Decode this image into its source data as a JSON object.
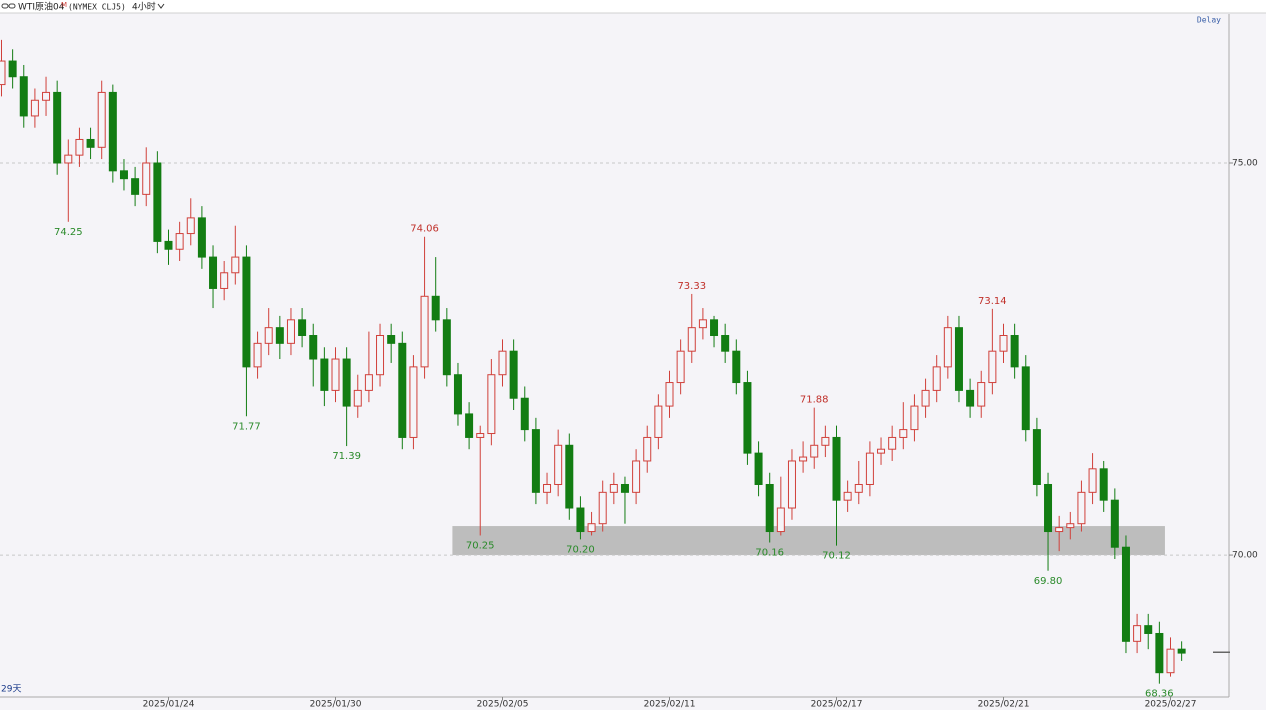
{
  "chart_data": {
    "type": "candlestick",
    "title": "WTI原油04",
    "title_badge": "M",
    "subtitle": "(NYMEX CLJ5)",
    "interval": "4小时",
    "status": "Delay",
    "period_label": "29天",
    "up_color": "#d0403a",
    "down_color": "#137d13",
    "ylim": [
      68.19,
      76.9
    ],
    "yticks": [
      {
        "value": 70,
        "label": "70.00"
      },
      {
        "value": 75,
        "label": "75.00"
      }
    ],
    "grid": true,
    "last_price": 68.76,
    "zone": {
      "low": 70.0,
      "high": 70.37,
      "candles": [
        41,
        104
      ]
    },
    "x": [
      null,
      null,
      null,
      null,
      null,
      null,
      null,
      null,
      null,
      null,
      null,
      null,
      null,
      null,
      null,
      "2025/01/24",
      null,
      null,
      null,
      null,
      null,
      null,
      null,
      null,
      null,
      null,
      null,
      null,
      null,
      null,
      "2025/01/30",
      null,
      null,
      null,
      null,
      null,
      null,
      null,
      null,
      null,
      null,
      null,
      null,
      null,
      null,
      "2025/02/05",
      null,
      null,
      null,
      null,
      null,
      null,
      null,
      null,
      null,
      null,
      null,
      null,
      null,
      null,
      "2025/02/11",
      null,
      null,
      null,
      null,
      null,
      null,
      null,
      null,
      null,
      null,
      null,
      null,
      null,
      null,
      "2025/02/17",
      null,
      null,
      null,
      null,
      null,
      null,
      null,
      null,
      null,
      null,
      null,
      null,
      null,
      null,
      "2025/02/21",
      null,
      null,
      null,
      null,
      null,
      null,
      null,
      null,
      null,
      null,
      null,
      null,
      null,
      null,
      "2025/02/27",
      null
    ],
    "candles": [
      [
        76.0,
        76.57,
        75.85,
        76.3
      ],
      [
        76.3,
        76.45,
        75.95,
        76.1
      ],
      [
        76.1,
        76.25,
        75.45,
        75.6
      ],
      [
        75.6,
        75.95,
        75.45,
        75.8
      ],
      [
        75.8,
        76.1,
        75.6,
        75.9
      ],
      [
        75.9,
        76.05,
        74.85,
        75.0
      ],
      [
        75.0,
        75.3,
        74.25,
        75.1
      ],
      [
        75.1,
        75.45,
        74.95,
        75.3
      ],
      [
        75.3,
        75.45,
        75.05,
        75.2
      ],
      [
        75.2,
        76.05,
        75.05,
        75.9
      ],
      [
        75.9,
        76.0,
        74.75,
        74.9
      ],
      [
        74.9,
        75.05,
        74.65,
        74.8
      ],
      [
        74.8,
        74.95,
        74.45,
        74.6
      ],
      [
        74.6,
        75.2,
        74.45,
        75.0
      ],
      [
        75.0,
        75.15,
        73.85,
        74.0
      ],
      [
        74.0,
        74.15,
        73.7,
        73.9
      ],
      [
        73.9,
        74.25,
        73.75,
        74.1
      ],
      [
        74.1,
        74.55,
        73.95,
        74.3
      ],
      [
        74.3,
        74.45,
        73.65,
        73.8
      ],
      [
        73.8,
        73.95,
        73.15,
        73.4
      ],
      [
        73.4,
        73.75,
        73.25,
        73.6
      ],
      [
        73.6,
        74.2,
        73.45,
        73.8
      ],
      [
        73.8,
        73.95,
        71.77,
        72.4
      ],
      [
        72.4,
        72.85,
        72.25,
        72.7
      ],
      [
        72.7,
        73.15,
        72.55,
        72.9
      ],
      [
        72.9,
        73.05,
        72.5,
        72.7
      ],
      [
        72.7,
        73.15,
        72.55,
        73.0
      ],
      [
        73.0,
        73.15,
        72.65,
        72.8
      ],
      [
        72.8,
        72.95,
        72.15,
        72.5
      ],
      [
        72.5,
        72.65,
        71.9,
        72.1
      ],
      [
        72.1,
        72.65,
        71.95,
        72.5
      ],
      [
        72.5,
        72.65,
        71.39,
        71.9
      ],
      [
        71.9,
        72.3,
        71.75,
        72.1
      ],
      [
        72.1,
        72.85,
        71.95,
        72.3
      ],
      [
        72.3,
        72.95,
        72.15,
        72.8
      ],
      [
        72.8,
        72.95,
        72.45,
        72.7
      ],
      [
        72.7,
        72.85,
        71.35,
        71.5
      ],
      [
        71.5,
        72.55,
        71.35,
        72.4
      ],
      [
        72.4,
        74.06,
        72.25,
        73.3
      ],
      [
        73.3,
        73.8,
        72.85,
        73.0
      ],
      [
        73.0,
        73.15,
        72.15,
        72.3
      ],
      [
        72.3,
        72.45,
        71.65,
        71.8
      ],
      [
        71.8,
        71.95,
        71.35,
        71.5
      ],
      [
        71.5,
        71.65,
        70.25,
        71.55
      ],
      [
        71.55,
        72.5,
        71.4,
        72.3
      ],
      [
        72.3,
        72.75,
        72.15,
        72.6
      ],
      [
        72.6,
        72.75,
        71.85,
        72.0
      ],
      [
        72.0,
        72.15,
        71.45,
        71.6
      ],
      [
        71.6,
        71.75,
        70.65,
        70.8
      ],
      [
        70.8,
        71.05,
        70.65,
        70.9
      ],
      [
        70.9,
        71.6,
        70.75,
        71.4
      ],
      [
        71.4,
        71.55,
        70.45,
        70.6
      ],
      [
        70.6,
        70.75,
        70.2,
        70.3
      ],
      [
        70.3,
        70.55,
        70.25,
        70.4
      ],
      [
        70.4,
        70.95,
        70.3,
        70.8
      ],
      [
        70.8,
        71.05,
        70.65,
        70.9
      ],
      [
        70.9,
        71.0,
        70.4,
        70.8
      ],
      [
        70.8,
        71.35,
        70.65,
        71.2
      ],
      [
        71.2,
        71.65,
        71.05,
        71.5
      ],
      [
        71.5,
        72.05,
        71.35,
        71.9
      ],
      [
        71.9,
        72.35,
        71.75,
        72.2
      ],
      [
        72.2,
        72.75,
        72.05,
        72.6
      ],
      [
        72.6,
        73.33,
        72.45,
        72.9
      ],
      [
        72.9,
        73.15,
        72.75,
        73.0
      ],
      [
        73.0,
        73.05,
        72.65,
        72.8
      ],
      [
        72.8,
        72.95,
        72.45,
        72.6
      ],
      [
        72.6,
        72.75,
        72.05,
        72.2
      ],
      [
        72.2,
        72.35,
        71.15,
        71.3
      ],
      [
        71.3,
        71.45,
        70.75,
        70.9
      ],
      [
        70.9,
        71.05,
        70.16,
        70.3
      ],
      [
        70.3,
        71.0,
        70.25,
        70.6
      ],
      [
        70.6,
        71.35,
        70.45,
        71.2
      ],
      [
        71.2,
        71.45,
        71.05,
        71.25
      ],
      [
        71.25,
        71.88,
        71.1,
        71.4
      ],
      [
        71.4,
        71.65,
        71.25,
        71.5
      ],
      [
        71.5,
        71.65,
        70.12,
        70.7
      ],
      [
        70.7,
        70.95,
        70.55,
        70.8
      ],
      [
        70.8,
        71.2,
        70.65,
        70.9
      ],
      [
        70.9,
        71.45,
        70.75,
        71.3
      ],
      [
        71.3,
        71.5,
        71.15,
        71.35
      ],
      [
        71.35,
        71.65,
        71.2,
        71.5
      ],
      [
        71.5,
        71.95,
        71.35,
        71.6
      ],
      [
        71.6,
        72.05,
        71.45,
        71.9
      ],
      [
        71.9,
        72.25,
        71.75,
        72.1
      ],
      [
        72.1,
        72.55,
        71.95,
        72.4
      ],
      [
        72.4,
        73.05,
        72.25,
        72.9
      ],
      [
        72.9,
        73.05,
        71.95,
        72.1
      ],
      [
        72.1,
        72.25,
        71.75,
        71.9
      ],
      [
        71.9,
        72.35,
        71.75,
        72.2
      ],
      [
        72.2,
        73.14,
        72.05,
        72.6
      ],
      [
        72.6,
        72.95,
        72.45,
        72.8
      ],
      [
        72.8,
        72.95,
        72.25,
        72.4
      ],
      [
        72.4,
        72.55,
        71.45,
        71.6
      ],
      [
        71.6,
        71.75,
        70.75,
        70.9
      ],
      [
        70.9,
        71.05,
        69.8,
        70.3
      ],
      [
        70.3,
        70.5,
        70.05,
        70.35
      ],
      [
        70.35,
        70.55,
        70.2,
        70.4
      ],
      [
        70.4,
        70.95,
        70.3,
        70.8
      ],
      [
        70.8,
        71.3,
        70.65,
        71.1
      ],
      [
        71.1,
        71.2,
        70.55,
        70.7
      ],
      [
        70.7,
        70.85,
        69.95,
        70.1
      ],
      [
        70.1,
        70.25,
        68.75,
        68.9
      ],
      [
        68.9,
        69.25,
        68.75,
        69.1
      ],
      [
        69.1,
        69.25,
        68.8,
        69.0
      ],
      [
        69.0,
        69.15,
        68.36,
        68.5
      ],
      [
        68.5,
        68.95,
        68.45,
        68.8
      ],
      [
        68.8,
        68.9,
        68.65,
        68.75
      ]
    ],
    "annotations": [
      {
        "candle": 6,
        "value": 74.25,
        "label": "74.25"
      },
      {
        "candle": 22,
        "value": 71.77,
        "label": "71.77"
      },
      {
        "candle": 31,
        "value": 71.39,
        "label": "71.39"
      },
      {
        "candle": 38,
        "value": 74.06,
        "label": "74.06"
      },
      {
        "candle": 43,
        "value": 70.25,
        "label": "70.25"
      },
      {
        "candle": 52,
        "value": 70.2,
        "label": "70.20"
      },
      {
        "candle": 62,
        "value": 73.33,
        "label": "73.33"
      },
      {
        "candle": 69,
        "value": 70.16,
        "label": "70.16"
      },
      {
        "candle": 73,
        "value": 71.88,
        "label": "71.88"
      },
      {
        "candle": 75,
        "value": 70.12,
        "label": "70.12"
      },
      {
        "candle": 89,
        "value": 73.14,
        "label": "73.14"
      },
      {
        "candle": 94,
        "value": 69.8,
        "label": "69.80"
      },
      {
        "candle": 104,
        "value": 68.36,
        "label": "68.36"
      }
    ]
  }
}
